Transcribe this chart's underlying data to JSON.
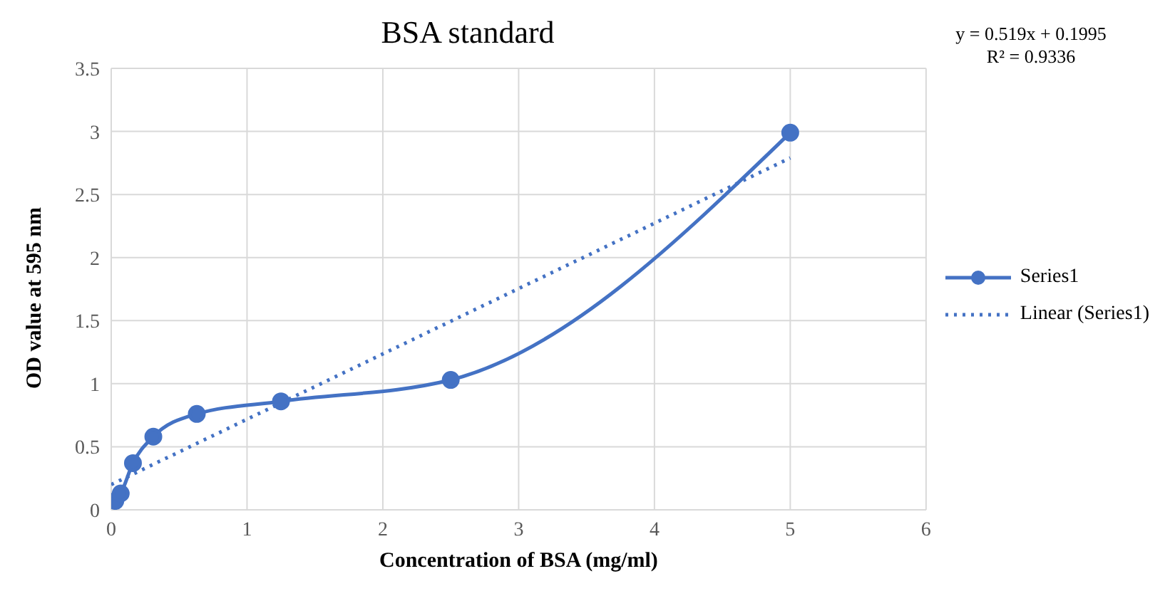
{
  "chart_data": {
    "type": "line",
    "title": "BSA standard",
    "xlabel": "Concentration of BSA (mg/ml)",
    "ylabel": "OD value at 595 nm",
    "annotations": [
      "y = 0.519x + 0.1995",
      "R² = 0.9336"
    ],
    "series": [
      {
        "name": "Series1",
        "color": "#4472c4",
        "x": [
          0.03,
          0.07,
          0.16,
          0.31,
          0.63,
          1.25,
          2.5,
          5
        ],
        "values": [
          0.07,
          0.13,
          0.37,
          0.58,
          0.76,
          0.86,
          1.03,
          2.99
        ],
        "marker": "circle",
        "line_style": "solid"
      },
      {
        "name": "Linear (Series1)",
        "type": "line",
        "color": "#4472c4",
        "x": [
          0,
          5
        ],
        "values": [
          0.2,
          2.79
        ],
        "marker": "none",
        "line_style": "dotted"
      }
    ],
    "xlim": [
      0,
      6
    ],
    "xticks": [
      0,
      1,
      2,
      3,
      4,
      5,
      6
    ],
    "ylim": [
      0,
      3.5
    ],
    "yticks": [
      0,
      0.5,
      1,
      1.5,
      2,
      2.5,
      3,
      3.5
    ],
    "grid": true,
    "legend": "right"
  }
}
